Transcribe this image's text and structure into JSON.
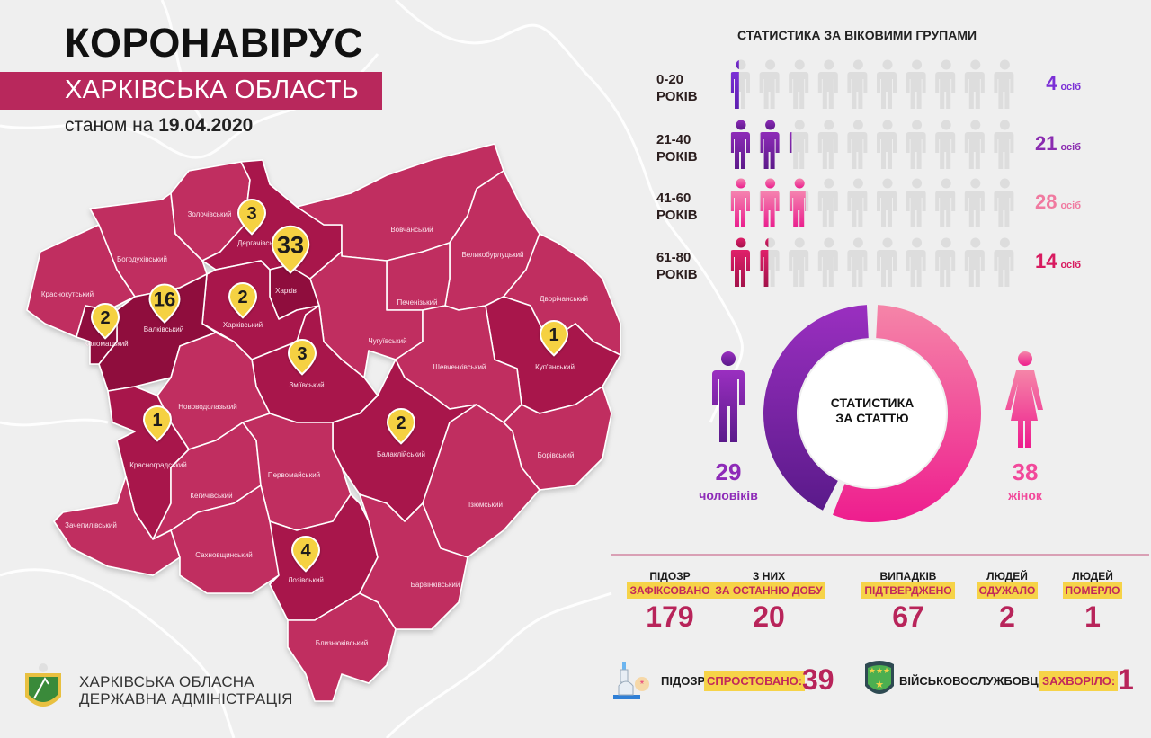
{
  "header": {
    "title": "КОРОНАВІРУС",
    "subtitle": "ХАРКІВСЬКА ОБЛАСТЬ",
    "date_prefix": "станом на",
    "date": "19.04.2020"
  },
  "map": {
    "colors": {
      "light": "#c02f60",
      "medium": "#a8164b",
      "dark": "#8f0d3d",
      "pin": "#f5d142"
    },
    "districts": [
      {
        "id": "krasnokutskyi",
        "name": "Краснокутський",
        "shade": "light"
      },
      {
        "id": "bohodukhivskyi",
        "name": "Богодухівський",
        "shade": "light"
      },
      {
        "id": "zolochivskyi",
        "name": "Золочівський",
        "shade": "light"
      },
      {
        "id": "derhachivskyi",
        "name": "Дергачівський",
        "shade": "medium"
      },
      {
        "id": "kharkiv",
        "name": "Харків",
        "shade": "dark"
      },
      {
        "id": "kharkivskyi",
        "name": "Харківський",
        "shade": "medium"
      },
      {
        "id": "valkivskyi",
        "name": "Валківський",
        "shade": "dark"
      },
      {
        "id": "kolomatskyi",
        "name": "Коломацький",
        "shade": "dark"
      },
      {
        "id": "vovchanskyi",
        "name": "Вовчанський",
        "shade": "light"
      },
      {
        "id": "velykoburlutskyi",
        "name": "Великобурлуцький",
        "shade": "light"
      },
      {
        "id": "pechenizkyi",
        "name": "Печенізький",
        "shade": "light"
      },
      {
        "id": "chuhuivskyi",
        "name": "Чугуївський",
        "shade": "light"
      },
      {
        "id": "dvorichanskyi",
        "name": "Дворічанський",
        "shade": "light"
      },
      {
        "id": "kupianskyi",
        "name": "Куп'янський",
        "shade": "medium"
      },
      {
        "id": "shevchenkivskyi",
        "name": "Шевченківський",
        "shade": "light"
      },
      {
        "id": "zmiivskyi",
        "name": "Зміївський",
        "shade": "medium"
      },
      {
        "id": "balakliiskyi",
        "name": "Балаклійський",
        "shade": "medium"
      },
      {
        "id": "borivskyi",
        "name": "Борівський",
        "shade": "light"
      },
      {
        "id": "iziumskyi",
        "name": "Ізюмський",
        "shade": "light"
      },
      {
        "id": "novovodolazkyi",
        "name": "Нововодолазький",
        "shade": "light"
      },
      {
        "id": "krasnohradskyi",
        "name": "Красноградський",
        "shade": "medium"
      },
      {
        "id": "kehychivskyi",
        "name": "Кегичівський",
        "shade": "light"
      },
      {
        "id": "zachepylivskyi",
        "name": "Зачепилівський",
        "shade": "light"
      },
      {
        "id": "pervomaiskyi",
        "name": "Первомайський",
        "shade": "light"
      },
      {
        "id": "sakhnovshchynskyi",
        "name": "Сахновщинський",
        "shade": "light"
      },
      {
        "id": "lozivskyi",
        "name": "Лозівський",
        "shade": "medium"
      },
      {
        "id": "barvinkivskyi",
        "name": "Барвінківський",
        "shade": "light"
      },
      {
        "id": "blyzniukivskyi",
        "name": "Близнюківський",
        "shade": "light"
      }
    ],
    "pins": [
      {
        "district": "derhachivskyi",
        "count": "3"
      },
      {
        "district": "kharkiv",
        "count": "33"
      },
      {
        "district": "valkivskyi",
        "count": "16"
      },
      {
        "district": "kolomatskyi",
        "count": "2"
      },
      {
        "district": "kharkivskyi",
        "count": "2"
      },
      {
        "district": "zmiivskyi",
        "count": "3"
      },
      {
        "district": "kupianskyi",
        "count": "1"
      },
      {
        "district": "balakliiskyi",
        "count": "2"
      },
      {
        "district": "krasnohradskyi",
        "count": "1"
      },
      {
        "district": "lozivskyi",
        "count": "4"
      }
    ]
  },
  "age_stats": {
    "title": "СТАТИСТИКА ЗА ВІКОВИМИ ГРУПАМИ",
    "unit": "осіб",
    "groups": [
      {
        "range": "0-20",
        "suffix": "РОКІВ",
        "value": 4,
        "color": "#7b2fd6",
        "color_dark": "#5e1fb0",
        "value_color": "#7b2fd6"
      },
      {
        "range": "21-40",
        "suffix": "РОКІВ",
        "value": 21,
        "color": "#8e2bb8",
        "color_dark": "#5c1a8a",
        "value_color": "#8a2bb0"
      },
      {
        "range": "41-60",
        "suffix": "РОКІВ",
        "value": 28,
        "color": "#f585b0",
        "color_dark": "#ea1e8e",
        "value_color": "#f07aa0"
      },
      {
        "range": "61-80",
        "suffix": "РОКІВ",
        "value": 14,
        "color": "#e0206a",
        "color_dark": "#a3124a",
        "value_color": "#d81b60"
      }
    ]
  },
  "gender_stats": {
    "title_line1": "СТАТИСТИКА",
    "title_line2": "ЗА СТАТТЮ",
    "male": {
      "value": 29,
      "label": "чоловіків",
      "color": "#8e2bb8"
    },
    "female": {
      "value": 38,
      "label": "жінок",
      "color": "#f2499b"
    }
  },
  "summary": [
    {
      "top": "ПІДОЗР",
      "highlight": "ЗАФІКСОВАНО",
      "value": "179"
    },
    {
      "top": "З НИХ",
      "highlight": "ЗА ОСТАННЮ ДОБУ",
      "value": "20"
    },
    {
      "top": "ВИПАДКІВ",
      "highlight": "ПІДТВЕРДЖЕНО",
      "value": "67"
    },
    {
      "top": "ЛЮДЕЙ",
      "highlight": "ОДУЖАЛО",
      "value": "2"
    },
    {
      "top": "ЛЮДЕЙ",
      "highlight": "ПОМЕРЛО",
      "value": "1"
    }
  ],
  "bottom": {
    "refuted": {
      "label": "ПІДОЗР",
      "highlight": "СПРОСТОВАНО:",
      "value": "39",
      "icon": "microscope-icon"
    },
    "military": {
      "label": "ВІЙСЬКОВОСЛУЖБОВЦІВ",
      "highlight": "ЗАХВОРІЛО:",
      "value": "1",
      "icon": "military-badge-icon"
    }
  },
  "org": {
    "line1": "ХАРКІВСЬКА ОБЛАСНА",
    "line2": "ДЕРЖАВНА АДМІНІСТРАЦІЯ",
    "logo": "coat-of-arms-icon"
  }
}
